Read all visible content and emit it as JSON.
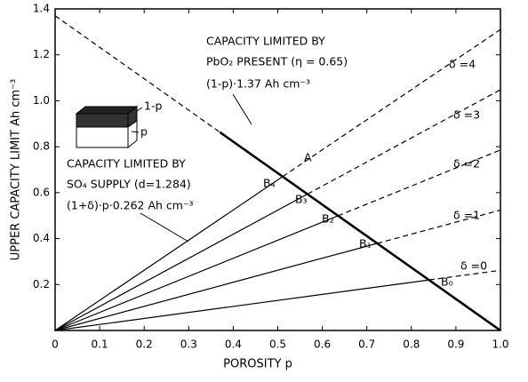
{
  "chart_data": {
    "type": "line",
    "xlabel": "POROSITY  p",
    "ylabel": "UPPER CAPACITY LIMIT   Ah cm⁻³",
    "xlim": [
      0,
      1
    ],
    "ylim": [
      0,
      1.4
    ],
    "xticks": [
      0,
      0.1,
      0.2,
      0.3,
      0.4,
      0.5,
      0.6,
      0.7,
      0.8,
      0.9,
      {
        "value": 1,
        "label": "1.0"
      }
    ],
    "yticks": [
      0.2,
      0.4,
      0.6,
      0.8,
      {
        "value": 1,
        "label": "1.0"
      },
      1.2,
      1.4
    ],
    "color": "#000000",
    "series": [
      {
        "x": [
          0,
          0.37
        ],
        "values": [
          1.37,
          0.863
        ],
        "dashed": true,
        "width": 1.2
      },
      {
        "x": [
          0.37,
          1
        ],
        "values": [
          0.863,
          0
        ],
        "dashed": false,
        "width": 2.6
      },
      {
        "x": [
          0,
          0.84
        ],
        "values": [
          0,
          0.22
        ],
        "dashed": false,
        "width": 1.2
      },
      {
        "x": [
          0.84,
          1
        ],
        "values": [
          0.22,
          0.262
        ],
        "dashed": true,
        "width": 1.2
      },
      {
        "x": [
          0,
          0.723
        ],
        "values": [
          0,
          0.379
        ],
        "dashed": false,
        "width": 1.2
      },
      {
        "x": [
          0.723,
          1
        ],
        "values": [
          0.379,
          0.524
        ],
        "dashed": true,
        "width": 1.2
      },
      {
        "x": [
          0,
          0.635
        ],
        "values": [
          0,
          0.499
        ],
        "dashed": false,
        "width": 1.2
      },
      {
        "x": [
          0.635,
          1
        ],
        "values": [
          0.499,
          0.786
        ],
        "dashed": true,
        "width": 1.2
      },
      {
        "x": [
          0,
          0.567
        ],
        "values": [
          0,
          0.594
        ],
        "dashed": false,
        "width": 1.2
      },
      {
        "x": [
          0.567,
          1
        ],
        "values": [
          0.594,
          1.048
        ],
        "dashed": true,
        "width": 1.2
      },
      {
        "x": [
          0,
          0.511
        ],
        "values": [
          0,
          0.67
        ],
        "dashed": false,
        "width": 1.2
      },
      {
        "x": [
          0.511,
          1
        ],
        "values": [
          0.67,
          1.31
        ],
        "dashed": true,
        "width": 1.2
      }
    ],
    "annotations": [
      "CAPACITY LIMITED BY",
      "PbO₂ PRESENT (η = 0.65)",
      "(1-p)·1.37  Ah cm⁻³",
      "CAPACITY LIMITED BY",
      "SO₄ SUPPLY (d=1.284)",
      "(1+δ)·p·0.262 Ah cm⁻³",
      "A",
      "B₄",
      "B₃",
      "B₂",
      "B₁",
      "B₀",
      "δ =4",
      "δ =3",
      "δ =2",
      "δ =1",
      "δ =0",
      "1-p",
      "p"
    ]
  }
}
